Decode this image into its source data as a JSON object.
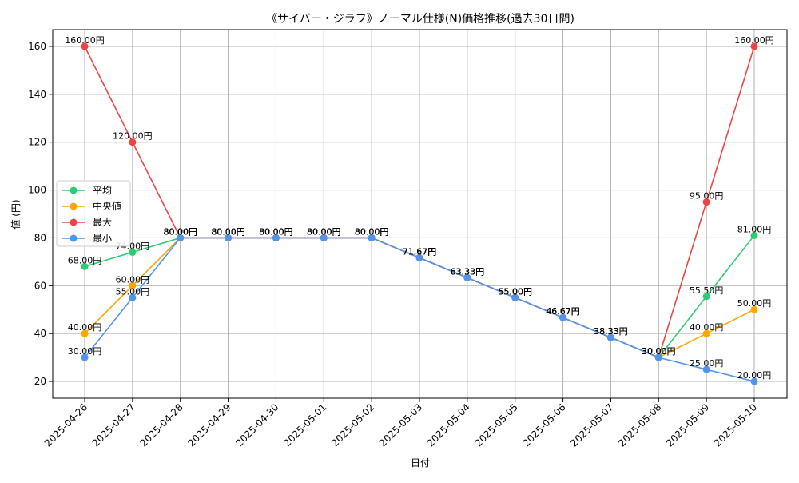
{
  "chart_data": {
    "type": "line",
    "title": "《サイバー・ジラフ》ノーマル仕様(N)価格推移(過去30日間)",
    "xlabel": "日付",
    "ylabel": "値 (円)",
    "ylim": [
      13,
      167
    ],
    "yticks": [
      20,
      40,
      60,
      80,
      100,
      120,
      140,
      160
    ],
    "grid": true,
    "legend_position": "center-left",
    "categories": [
      "2025-04-26",
      "2025-04-27",
      "2025-04-28",
      "2025-04-29",
      "2025-04-30",
      "2025-05-01",
      "2025-05-02",
      "2025-05-03",
      "2025-05-04",
      "2025-05-05",
      "2025-05-06",
      "2025-05-07",
      "2025-05-08",
      "2025-05-09",
      "2025-05-10"
    ],
    "series": [
      {
        "name": "平均",
        "color": "#2ecc71",
        "values": [
          68.0,
          74.0,
          80.0,
          80.0,
          80.0,
          80.0,
          80.0,
          71.67,
          63.33,
          55.0,
          46.67,
          38.33,
          30.0,
          55.5,
          81.0
        ]
      },
      {
        "name": "中央値",
        "color": "#ffa500",
        "values": [
          40.0,
          60.0,
          80.0,
          80.0,
          80.0,
          80.0,
          80.0,
          71.67,
          63.33,
          55.0,
          46.67,
          38.33,
          30.0,
          40.0,
          50.0
        ]
      },
      {
        "name": "最大",
        "color": "#ef4444",
        "values": [
          160.0,
          120.0,
          80.0,
          80.0,
          80.0,
          80.0,
          80.0,
          71.67,
          63.33,
          55.0,
          46.67,
          38.33,
          30.0,
          95.0,
          160.0
        ]
      },
      {
        "name": "最小",
        "color": "#4f94ef",
        "values": [
          30.0,
          55.0,
          80.0,
          80.0,
          80.0,
          80.0,
          80.0,
          71.67,
          63.33,
          55.0,
          46.67,
          38.33,
          30.0,
          25.0,
          20.0
        ]
      }
    ],
    "label_suffix": "円"
  }
}
